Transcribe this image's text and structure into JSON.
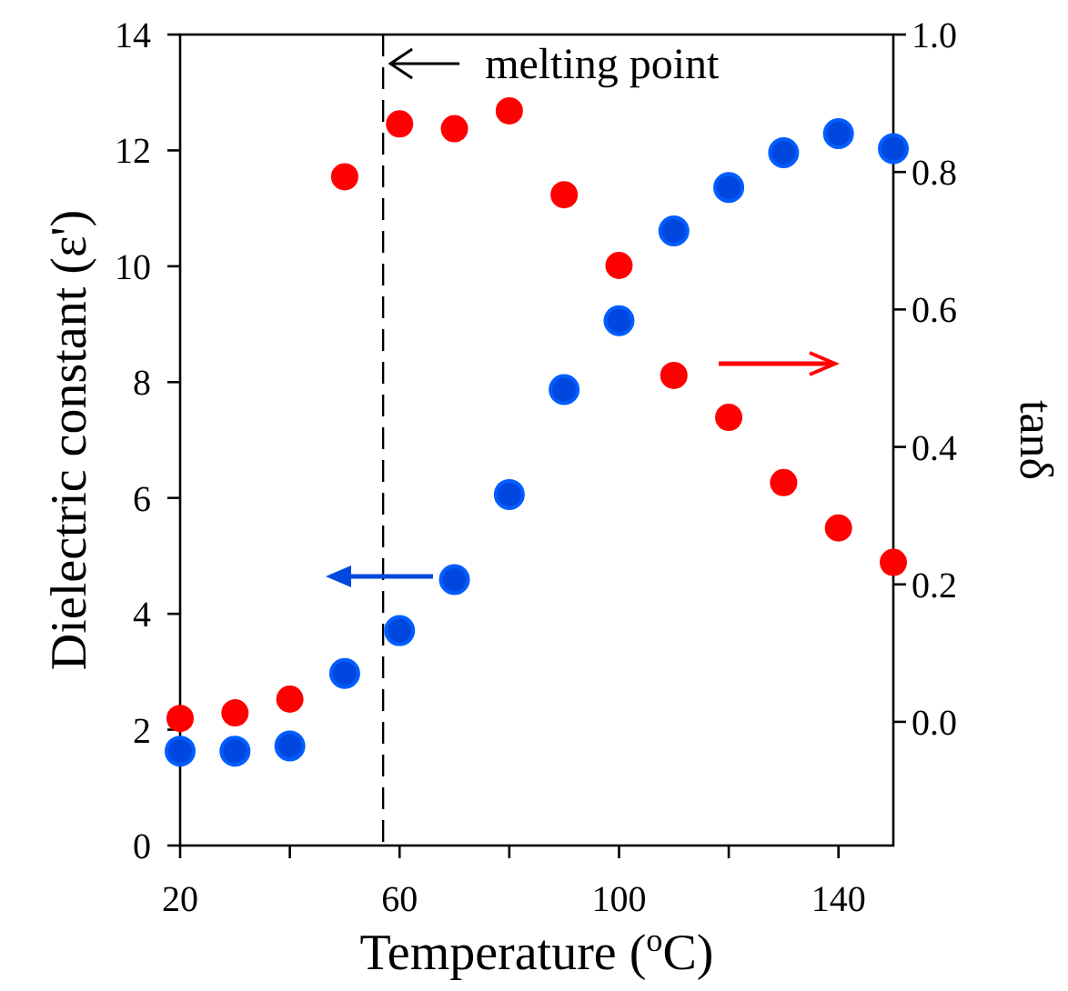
{
  "chart_data": {
    "type": "scatter",
    "xlabel": "Temperature ($^{o}$C)",
    "ylabel": "Dielectric constant (ε')",
    "y2label": "tanδ",
    "x": [
      20,
      30,
      40,
      50,
      60,
      70,
      80,
      90,
      100,
      110,
      120,
      130,
      140,
      150
    ],
    "series": [
      {
        "color": "#0047e0",
        "values": [
          1.63,
          1.63,
          1.72,
          2.97,
          3.71,
          4.59,
          6.06,
          7.87,
          9.06,
          10.61,
          11.36,
          11.96,
          12.29,
          12.03
        ]
      },
      {
        "color": "#ff0000",
        "axis": "y2",
        "values": [
          0.005,
          0.013,
          0.033,
          0.793,
          0.87,
          0.863,
          0.889,
          0.767,
          0.664,
          0.504,
          0.443,
          0.348,
          0.282,
          0.232
        ]
      }
    ],
    "xlim": [
      20,
      150
    ],
    "xticks": [
      20,
      {
        "value": 40,
        "label": null
      },
      60,
      {
        "value": 80,
        "label": null
      },
      100,
      {
        "value": 120,
        "label": null
      },
      140
    ],
    "ylim": [
      0,
      14
    ],
    "yticks": [
      0,
      2,
      4,
      6,
      8,
      10,
      12,
      14
    ],
    "y2lim": [
      -0.18,
      1.0
    ],
    "y2ticks": [
      {
        "value": 0,
        "label": "0.0"
      },
      0.2,
      0.4,
      0.6,
      0.8,
      {
        "value": 1,
        "label": "1.0"
      }
    ],
    "ref_lines": [
      {
        "axis": "x",
        "value": 57,
        "label": "melting point",
        "line_style": "dashed",
        "color": "#000000"
      }
    ],
    "marker": "circle",
    "grid": false
  }
}
